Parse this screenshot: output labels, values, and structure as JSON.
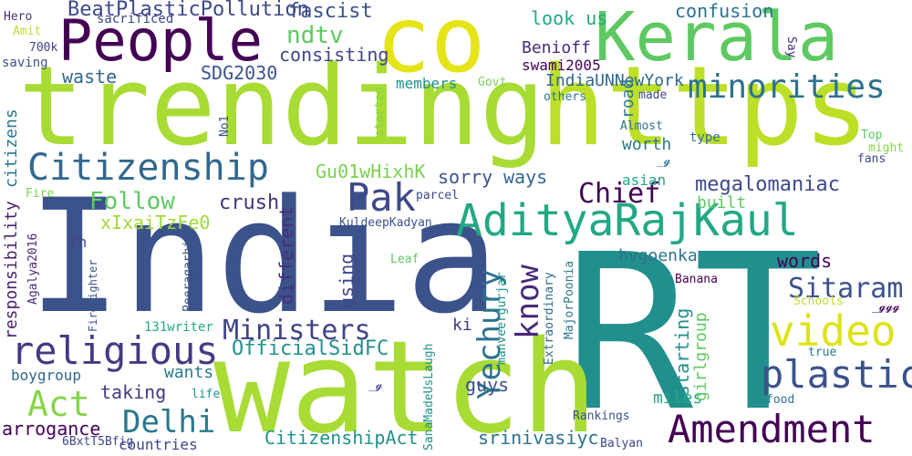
{
  "word_cloud": {
    "background": "#ffffff",
    "words": [
      {
        "text": "trending",
        "color": "#a8db34"
      },
      {
        "text": "https",
        "color": "#bcdf27"
      },
      {
        "text": "India",
        "color": "#3b528b"
      },
      {
        "text": "RT",
        "color": "#21908d"
      },
      {
        "text": "watch",
        "color": "#a8db34"
      },
      {
        "text": "co",
        "color": "#e5e419"
      },
      {
        "text": "Kerala",
        "color": "#5ec962"
      },
      {
        "text": "People",
        "color": "#440154"
      },
      {
        "text": "AdityaRajKaul",
        "color": "#22a884"
      },
      {
        "text": "Citizenship",
        "color": "#31688e"
      },
      {
        "text": "minorities",
        "color": "#2c728e"
      },
      {
        "text": "religious",
        "color": "#443a83"
      },
      {
        "text": "Amendment",
        "color": "#440154"
      },
      {
        "text": "plastic",
        "color": "#3b528b"
      },
      {
        "text": "video",
        "color": "#dde318"
      },
      {
        "text": "Pak",
        "color": "#3e4989"
      },
      {
        "text": "Delhi",
        "color": "#2a788e"
      },
      {
        "text": "Act",
        "color": "#86d549"
      },
      {
        "text": "Ministers",
        "color": "#414487"
      },
      {
        "text": "Sitaram",
        "color": "#3b528b"
      },
      {
        "text": "Yechury",
        "color": "#2c728e"
      },
      {
        "text": "know",
        "color": "#482878"
      },
      {
        "text": "Chief",
        "color": "#440154"
      },
      {
        "text": "Follow",
        "color": "#5ec962"
      },
      {
        "text": "BeatPlasticPollution",
        "color": "#3e4989"
      },
      {
        "text": "ndtv",
        "color": "#5ec962"
      },
      {
        "text": "SDG2030",
        "color": "#3b528b"
      },
      {
        "text": "consisting",
        "color": "#414487"
      },
      {
        "text": "fascist",
        "color": "#3b528b"
      },
      {
        "text": "confusion",
        "color": "#2c728e"
      },
      {
        "text": "look us",
        "color": "#22a884"
      },
      {
        "text": "waste",
        "color": "#31688e"
      },
      {
        "text": "Benioff",
        "color": "#472d7b"
      },
      {
        "text": "swami2005",
        "color": "#440154"
      },
      {
        "text": "IndiaUNNewYork",
        "color": "#31688e"
      },
      {
        "text": "members",
        "color": "#21918c"
      },
      {
        "text": "Gu01wHixhK",
        "color": "#7ad151"
      },
      {
        "text": "crush",
        "color": "#46327e"
      },
      {
        "text": "xIxaiTzFe0",
        "color": "#a0da39"
      },
      {
        "text": "sorry",
        "color": "#3b528b"
      },
      {
        "text": "ways",
        "color": "#31688e"
      },
      {
        "text": "megalomaniac",
        "color": "#3e4989"
      },
      {
        "text": "built",
        "color": "#5ec962"
      },
      {
        "text": "asian",
        "color": "#22a884"
      },
      {
        "text": "worth",
        "color": "#2a788e"
      },
      {
        "text": "road",
        "color": "#2a788e"
      },
      {
        "text": "words",
        "color": "#440154"
      },
      {
        "text": "hvgoenka",
        "color": "#2c728e"
      },
      {
        "text": "OfficialSidFC",
        "color": "#21918c"
      },
      {
        "text": "CitizenshipAct",
        "color": "#21918c"
      },
      {
        "text": "wants",
        "color": "#2a788e"
      },
      {
        "text": "taking",
        "color": "#443a83"
      },
      {
        "text": "boygroup",
        "color": "#31688e"
      },
      {
        "text": "arrogance",
        "color": "#440154"
      },
      {
        "text": "countries",
        "color": "#414487"
      },
      {
        "text": "guys",
        "color": "#3b528b"
      },
      {
        "text": "miles",
        "color": "#22a884"
      },
      {
        "text": "srinivasiyc",
        "color": "#2c728e"
      },
      {
        "text": "131writer",
        "color": "#22a884"
      },
      {
        "text": "using",
        "color": "#414487"
      },
      {
        "text": "different",
        "color": "#472d7b"
      },
      {
        "text": "th",
        "color": "#414487"
      },
      {
        "text": "ki",
        "color": "#443a83"
      },
      {
        "text": "responsibility",
        "color": "#481f70"
      },
      {
        "text": "citizens",
        "color": "#2a788e"
      },
      {
        "text": "starting",
        "color": "#21918c"
      },
      {
        "text": "girlgroup",
        "color": "#5ec962"
      },
      {
        "text": "saving",
        "color": "#3b528b"
      },
      {
        "text": "Hero",
        "color": "#472d7b"
      },
      {
        "text": "Amit",
        "color": "#bddf26"
      },
      {
        "text": "700k",
        "color": "#414487"
      },
      {
        "text": "sacrificed",
        "color": "#414487"
      },
      {
        "text": "Say",
        "color": "#472d7b"
      },
      {
        "text": "Govt",
        "color": "#7ad151"
      },
      {
        "text": "others",
        "color": "#2c728e"
      },
      {
        "text": "made",
        "color": "#3e4989"
      },
      {
        "text": "started",
        "color": "#86d549"
      },
      {
        "text": "No1",
        "color": "#3b528b"
      },
      {
        "text": "Almost",
        "color": "#2c728e"
      },
      {
        "text": "type",
        "color": "#2c728e"
      },
      {
        "text": "Top",
        "color": "#5ec962"
      },
      {
        "text": "might",
        "color": "#86d549"
      },
      {
        "text": "fans",
        "color": "#3e4989"
      },
      {
        "text": "_𝓰",
        "color": "#2c728e"
      },
      {
        "text": "Fire",
        "color": "#7ad151"
      },
      {
        "text": "parcel",
        "color": "#3e4989"
      },
      {
        "text": "KuldeepKadyan",
        "color": "#3b528b"
      },
      {
        "text": "Banana",
        "color": "#440154"
      },
      {
        "text": "Leaf",
        "color": "#5ec962"
      },
      {
        "text": "Schools",
        "color": "#bddf26"
      },
      {
        "text": "_𝓰𝓰𝓰",
        "color": "#440154"
      },
      {
        "text": "true",
        "color": "#2a788e"
      },
      {
        "text": "food",
        "color": "#2c728e"
      },
      {
        "text": "life",
        "color": "#21918c"
      },
      {
        "text": "_𝓰",
        "color": "#3e4989"
      },
      {
        "text": "Rankings",
        "color": "#3b528b"
      },
      {
        "text": "Balyan",
        "color": "#3e4989"
      },
      {
        "text": "6BxtT5Bfig",
        "color": "#3e4989"
      },
      {
        "text": "Agalya2016",
        "color": "#482878"
      },
      {
        "text": "Firefighter",
        "color": "#3b528b"
      },
      {
        "text": "Peeragarhi",
        "color": "#3b528b"
      },
      {
        "text": "SanaMadeUsLaugh",
        "color": "#21918c"
      },
      {
        "text": "manveergurjar",
        "color": "#21918c"
      },
      {
        "text": "Extraordinary",
        "color": "#31688e"
      },
      {
        "text": "MajorPoonia",
        "color": "#2a788e"
      }
    ]
  }
}
